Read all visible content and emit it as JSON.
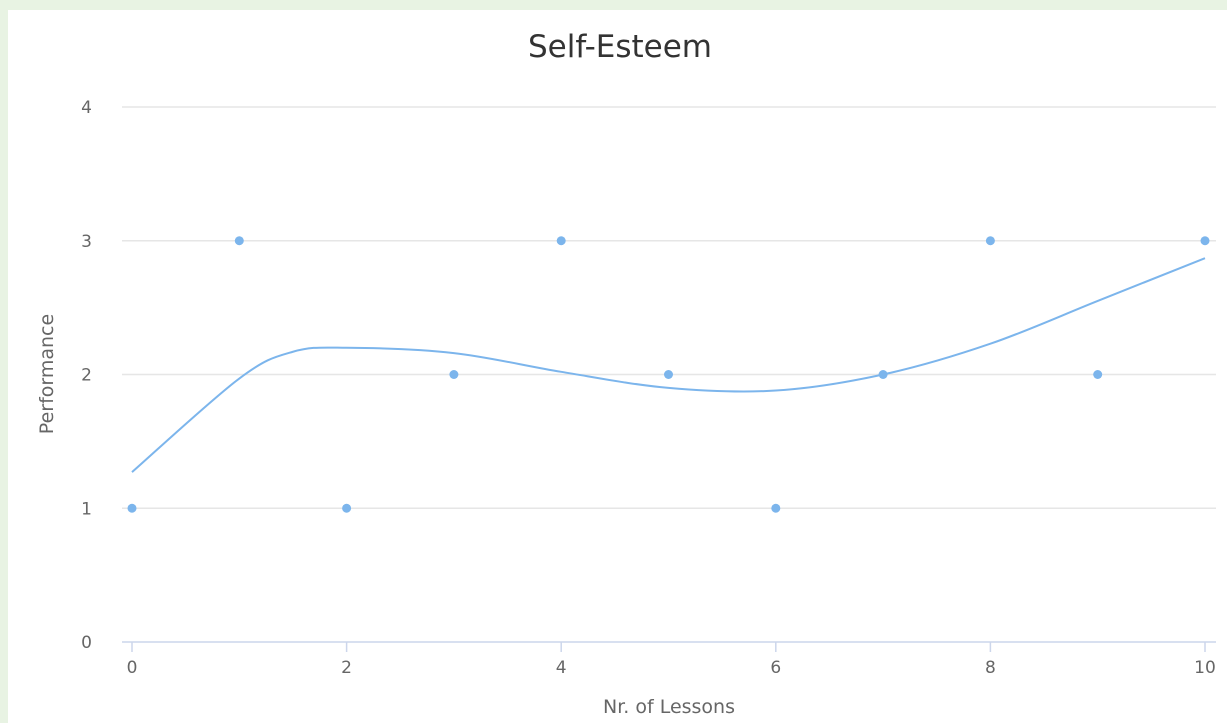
{
  "chart_data": {
    "type": "scatter",
    "title": "Self-Esteem",
    "xlabel": "Nr. of Lessons",
    "ylabel": "Performance",
    "xlim": [
      0,
      10
    ],
    "ylim": [
      0,
      4
    ],
    "x_ticks": [
      "0",
      "2",
      "4",
      "6",
      "8",
      "10"
    ],
    "y_ticks": [
      "0",
      "1",
      "2",
      "3",
      "4"
    ],
    "grid": true,
    "legend": "none",
    "colors": {
      "series": "#7cb5ec",
      "trend": "#7cb5ec"
    },
    "series": [
      {
        "kind": "scatter",
        "x": [
          0,
          1,
          2,
          3,
          4,
          5,
          6,
          7,
          8,
          9,
          10
        ],
        "y": [
          1,
          3,
          1,
          2,
          3,
          2,
          1,
          2,
          3,
          2,
          3
        ]
      },
      {
        "kind": "line",
        "x": [
          0,
          1,
          1.5,
          2,
          3,
          4,
          5,
          6,
          7,
          8,
          9,
          10
        ],
        "y": [
          1.27,
          1.97,
          2.17,
          2.2,
          2.16,
          2.02,
          1.9,
          1.88,
          2.0,
          2.23,
          2.55,
          2.87
        ]
      }
    ]
  }
}
